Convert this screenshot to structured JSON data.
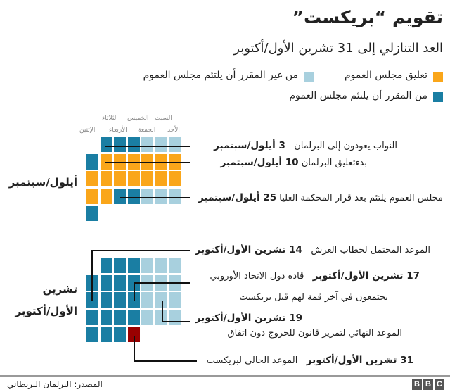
{
  "title": "تقويم “بريكست”",
  "subtitle": "العد التنازلي إلى 31 تشرين الأول/أكتوبر",
  "colors": {
    "suspended": "#faa61a",
    "not_scheduled": "#a8d0de",
    "scheduled": "#1a7ea3",
    "deadline": "#990000"
  },
  "legend": [
    {
      "key": "suspended",
      "label": "تعليق مجلس العموم"
    },
    {
      "key": "not_scheduled",
      "label": "من غير المقرر أن يلتئم مجلس العموم"
    },
    {
      "key": "scheduled",
      "label": "من المقرر أن يلتئم مجلس العموم"
    }
  ],
  "days": [
    "الإثنين",
    "الثلاثاء",
    "الأربعاء",
    "الخميس",
    "الجمعة",
    "السبت",
    "الأحد"
  ],
  "months": [
    {
      "label": "أيلول/سبتمبر",
      "weeks": [
        [
          null,
          "scheduled",
          "scheduled",
          "scheduled",
          "not_scheduled",
          "not_scheduled",
          "not_scheduled"
        ],
        [
          "scheduled",
          "suspended",
          "suspended",
          "suspended",
          "suspended",
          "suspended",
          "suspended"
        ],
        [
          "suspended",
          "suspended",
          "suspended",
          "suspended",
          "suspended",
          "suspended",
          "suspended"
        ],
        [
          "suspended",
          "suspended",
          "scheduled",
          "scheduled",
          "not_scheduled",
          "not_scheduled",
          "not_scheduled"
        ],
        [
          "scheduled",
          null,
          null,
          null,
          null,
          null,
          null
        ]
      ]
    },
    {
      "label_line1": "تشرين",
      "label_line2": "الأول/أكتوبر",
      "weeks": [
        [
          null,
          "scheduled",
          "scheduled",
          "scheduled",
          "not_scheduled",
          "not_scheduled",
          "not_scheduled"
        ],
        [
          "scheduled",
          "scheduled",
          "scheduled",
          "scheduled",
          "not_scheduled",
          "not_scheduled",
          "not_scheduled"
        ],
        [
          "scheduled",
          "scheduled",
          "scheduled",
          "scheduled",
          "not_scheduled",
          "not_scheduled",
          "not_scheduled"
        ],
        [
          "scheduled",
          "scheduled",
          "scheduled",
          "scheduled",
          "not_scheduled",
          "not_scheduled",
          "not_scheduled"
        ],
        [
          "scheduled",
          "scheduled",
          "scheduled",
          "deadline",
          null,
          null,
          null
        ]
      ]
    }
  ],
  "annotations": {
    "sep3": {
      "text": "النواب يعودون إلى البرلمان",
      "date": "3 أيلول/سبتمبر"
    },
    "sep10": {
      "text": "بدءتعليق البرلمان",
      "date": "10 أيلول/سبتمبر"
    },
    "sep25": {
      "text": "مجلس العموم يلتئم بعد قرار المحكمة العليا",
      "date": "25 أيلول/سبتمبر"
    },
    "oct14": {
      "text": "الموعد المحتمل لخطاب العرش",
      "date": "14 تشرين الأول/أكتوبر"
    },
    "oct17": {
      "date": "17 تشرين الأول/أكتوبر",
      "text": "قادة دول الاتحاد الأوروبي",
      "text2": "يجتمعون في آخر قمة لهم قبل بريكست"
    },
    "oct19": {
      "date": "19 تشرين الأول/أكتوبر",
      "text": "الموعد النهائي لتمرير قانون للخروج دون اتفاق"
    },
    "oct31": {
      "date": "31 تشرين الأول/أكتوبر",
      "text": "الموعد الحالي لبريكست"
    }
  },
  "footer": {
    "source": "المصدر: البرلمان البريطاني",
    "logo": [
      "B",
      "B",
      "C"
    ]
  }
}
